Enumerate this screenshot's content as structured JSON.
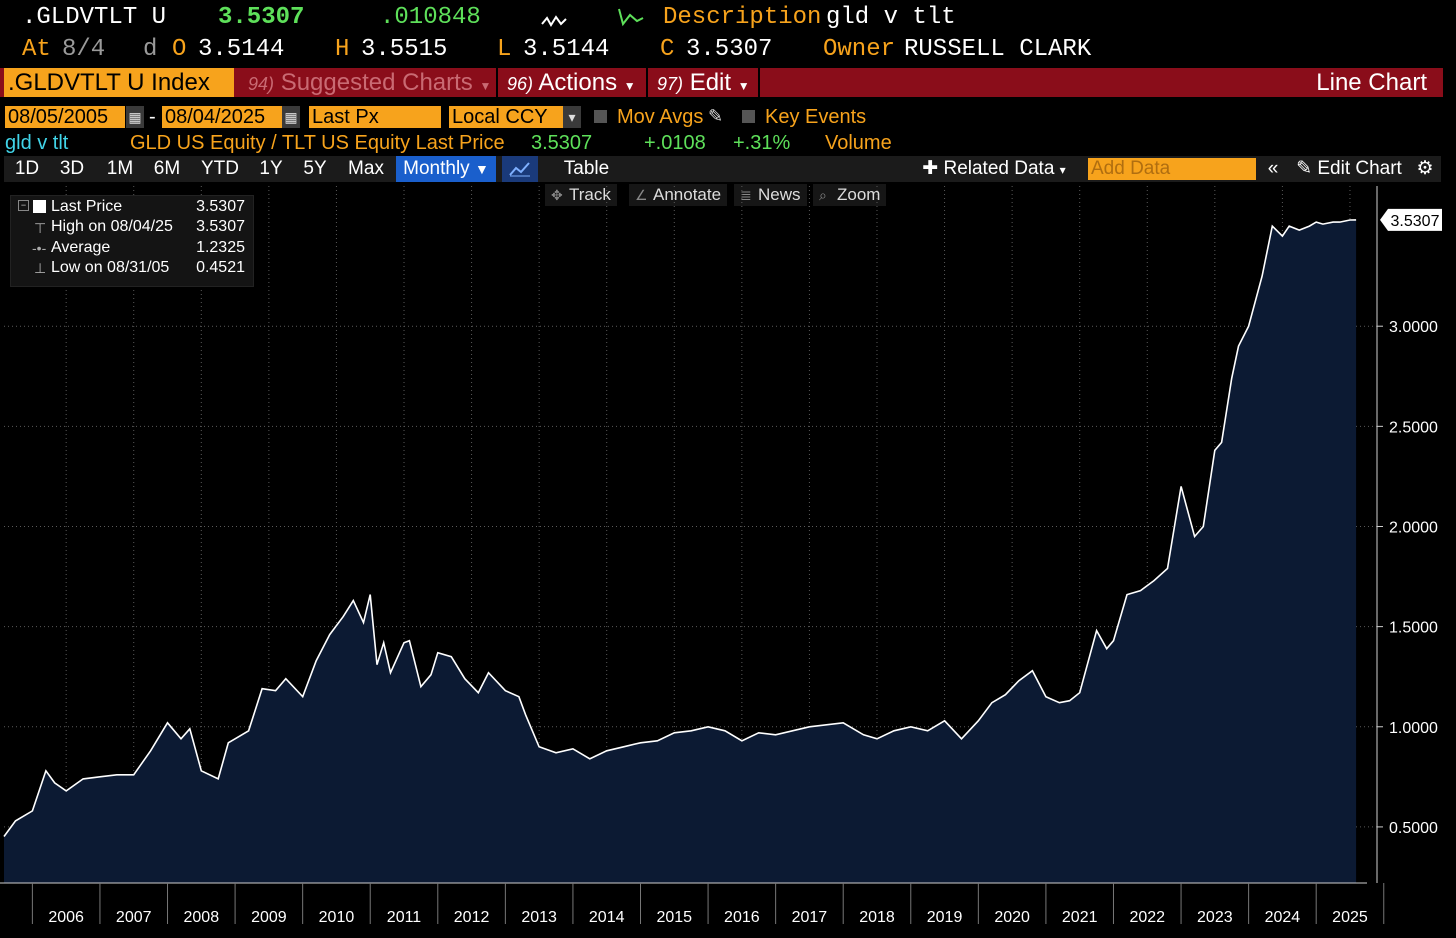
{
  "header": {
    "ticker": ".GLDVTLT U",
    "last": "3.5307",
    "change": ".010848",
    "desc_label": "Description",
    "desc_value": "gld v tlt",
    "at_label": "At",
    "at_date": "8/4",
    "d_label": "d",
    "o_label": "O",
    "o_value": "3.5144",
    "h_label": "H",
    "h_value": "3.5515",
    "l_label": "L",
    "l_value": "3.5144",
    "c_label": "C",
    "c_value": "3.5307",
    "owner_label": "Owner",
    "owner_value": "RUSSELL CLARK"
  },
  "cmdbar": {
    "index": ".GLDVTLT U Index",
    "suggested_num": "94)",
    "suggested": "Suggested Charts",
    "actions_num": "96)",
    "actions": "Actions",
    "edit_num": "97)",
    "edit": "Edit",
    "chart_type": "Line Chart"
  },
  "range": {
    "start": "08/05/2005",
    "dash": "-",
    "end": "08/04/2025",
    "field": "Last Px",
    "ccy": "Local CCY",
    "mov_avgs": "Mov Avgs",
    "key_events": "Key Events"
  },
  "series_line": {
    "name": "gld v tlt",
    "desc": "GLD US Equity / TLT US Equity Last Price",
    "value": "3.5307",
    "change": "+.0108",
    "pct": "+.31%",
    "volume": "Volume"
  },
  "toolbar": {
    "periods": [
      "1D",
      "3D",
      "1M",
      "6M",
      "YTD",
      "1Y",
      "5Y",
      "Max"
    ],
    "frequency": "Monthly",
    "table": "Table",
    "related": "Related Data",
    "add_data_placeholder": "Add Data",
    "edit_chart": "Edit Chart",
    "sub": [
      "Track",
      "Annotate",
      "News",
      "Zoom"
    ]
  },
  "legend": {
    "rows": [
      {
        "label": "Last Price",
        "value": "3.5307"
      },
      {
        "label": "High on 08/04/25",
        "value": "3.5307"
      },
      {
        "label": "Average",
        "value": "1.2325"
      },
      {
        "label": "Low on 08/31/05",
        "value": "0.4521"
      }
    ]
  },
  "colors": {
    "accent": "#f7a31c",
    "command_bar": "#8a0d1a",
    "up": "#5ee05a",
    "area_fill": "#0c1a33",
    "active_tab": "#1a5fcc"
  },
  "chart_data": {
    "type": "area",
    "title": "",
    "xlabel": "",
    "ylabel": "",
    "x_ticks": [
      "2006",
      "2007",
      "2008",
      "2009",
      "2010",
      "2011",
      "2012",
      "2013",
      "2014",
      "2015",
      "2016",
      "2017",
      "2018",
      "2019",
      "2020",
      "2021",
      "2022",
      "2023",
      "2024",
      "2025"
    ],
    "y_ticks": [
      "0.5000",
      "1.0000",
      "1.5000",
      "2.0000",
      "2.5000",
      "3.0000"
    ],
    "y_tick_values": [
      0.5,
      1.0,
      1.5,
      2.0,
      2.5,
      3.0
    ],
    "ylim": [
      0.22,
      3.7
    ],
    "xlim": [
      2005.58,
      2025.9
    ],
    "last_value_label": "3.5307",
    "grid": true,
    "series": [
      {
        "x": [
          2005.58,
          2005.75,
          2006.0,
          2006.2,
          2006.33,
          2006.5,
          2006.75,
          2007.0,
          2007.25,
          2007.5,
          2007.75,
          2008.0,
          2008.2,
          2008.33,
          2008.5,
          2008.75,
          2008.9,
          2009.0,
          2009.2,
          2009.4,
          2009.6,
          2009.75,
          2010.0,
          2010.2,
          2010.4,
          2010.6,
          2010.75,
          2010.9,
          2011.0,
          2011.1,
          2011.2,
          2011.3,
          2011.5,
          2011.58,
          2011.75,
          2011.9,
          2012.0,
          2012.2,
          2012.4,
          2012.6,
          2012.75,
          2013.0,
          2013.2,
          2013.3,
          2013.5,
          2013.75,
          2014.0,
          2014.25,
          2014.5,
          2014.75,
          2015.0,
          2015.25,
          2015.5,
          2015.75,
          2016.0,
          2016.25,
          2016.5,
          2016.75,
          2017.0,
          2017.5,
          2018.0,
          2018.3,
          2018.5,
          2018.75,
          2019.0,
          2019.25,
          2019.5,
          2019.75,
          2020.0,
          2020.2,
          2020.4,
          2020.6,
          2020.8,
          2021.0,
          2021.2,
          2021.35,
          2021.5,
          2021.75,
          2021.9,
          2022.0,
          2022.2,
          2022.4,
          2022.6,
          2022.8,
          2023.0,
          2023.2,
          2023.33,
          2023.5,
          2023.6,
          2023.75,
          2023.85,
          2024.0,
          2024.2,
          2024.35,
          2024.5,
          2024.6,
          2024.75,
          2024.9,
          2025.0,
          2025.1,
          2025.25,
          2025.35,
          2025.5,
          2025.59
        ],
        "y": [
          0.4521,
          0.53,
          0.58,
          0.78,
          0.72,
          0.68,
          0.74,
          0.75,
          0.76,
          0.76,
          0.88,
          1.02,
          0.94,
          0.99,
          0.78,
          0.74,
          0.92,
          0.94,
          0.98,
          1.19,
          1.18,
          1.24,
          1.15,
          1.33,
          1.46,
          1.55,
          1.63,
          1.52,
          1.66,
          1.31,
          1.42,
          1.27,
          1.42,
          1.43,
          1.2,
          1.26,
          1.37,
          1.35,
          1.24,
          1.17,
          1.27,
          1.18,
          1.15,
          1.06,
          0.9,
          0.87,
          0.89,
          0.84,
          0.88,
          0.9,
          0.92,
          0.93,
          0.97,
          0.98,
          1.0,
          0.98,
          0.93,
          0.97,
          0.96,
          1.0,
          1.02,
          0.96,
          0.94,
          0.98,
          1.0,
          0.98,
          1.03,
          0.94,
          1.03,
          1.12,
          1.16,
          1.23,
          1.28,
          1.15,
          1.12,
          1.13,
          1.17,
          1.48,
          1.39,
          1.43,
          1.66,
          1.68,
          1.73,
          1.79,
          2.2,
          1.95,
          2.0,
          2.38,
          2.42,
          2.74,
          2.9,
          3.0,
          3.25,
          3.5,
          3.45,
          3.5,
          3.48,
          3.5,
          3.52,
          3.51,
          3.52,
          3.52,
          3.53,
          3.5307
        ]
      }
    ]
  }
}
